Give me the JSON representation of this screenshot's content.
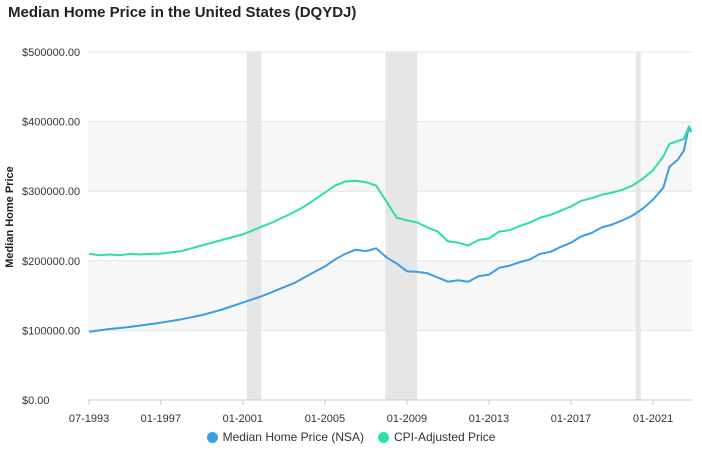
{
  "chart_data": {
    "type": "line",
    "title": "Median Home Price in the United States (DQYDJ)",
    "ylabel": "Median Home Price",
    "xlabel": "",
    "xlim": [
      1993.45,
      2022.9
    ],
    "ylim": [
      0,
      500000
    ],
    "x_ticks": [
      {
        "x": 1993.5,
        "label": "07-1993"
      },
      {
        "x": 1997.0,
        "label": "01-1997"
      },
      {
        "x": 2001.0,
        "label": "01-2001"
      },
      {
        "x": 2005.0,
        "label": "01-2005"
      },
      {
        "x": 2009.0,
        "label": "01-2009"
      },
      {
        "x": 2013.0,
        "label": "01-2013"
      },
      {
        "x": 2017.0,
        "label": "01-2017"
      },
      {
        "x": 2021.0,
        "label": "01-2021"
      }
    ],
    "y_ticks": [
      {
        "y": 0,
        "label": "$0.00"
      },
      {
        "y": 100000,
        "label": "$100000.00"
      },
      {
        "y": 200000,
        "label": "$200000.00"
      },
      {
        "y": 300000,
        "label": "$300000.00"
      },
      {
        "y": 400000,
        "label": "$400000.00"
      },
      {
        "y": 500000,
        "label": "$500000.00"
      }
    ],
    "recessions": [
      [
        2001.2,
        2001.9
      ],
      [
        2007.95,
        2009.5
      ],
      [
        2020.15,
        2020.4
      ]
    ],
    "legend_position": "bottom",
    "grid": "horizontal",
    "series": [
      {
        "name": "Median Home Price (NSA)",
        "color": "#3a9ee6",
        "points": [
          [
            1993.5,
            98000
          ],
          [
            1994.0,
            100000
          ],
          [
            1994.5,
            102000
          ],
          [
            1995.0,
            103500
          ],
          [
            1995.5,
            105000
          ],
          [
            1996.0,
            107000
          ],
          [
            1996.5,
            109000
          ],
          [
            1997.0,
            111000
          ],
          [
            1997.5,
            113500
          ],
          [
            1998.0,
            116000
          ],
          [
            1998.5,
            119000
          ],
          [
            1999.0,
            122000
          ],
          [
            1999.5,
            126000
          ],
          [
            2000.0,
            130000
          ],
          [
            2000.5,
            135000
          ],
          [
            2001.0,
            140000
          ],
          [
            2001.5,
            145000
          ],
          [
            2002.0,
            150000
          ],
          [
            2002.5,
            156000
          ],
          [
            2003.0,
            162000
          ],
          [
            2003.5,
            168000
          ],
          [
            2004.0,
            176000
          ],
          [
            2004.5,
            184000
          ],
          [
            2005.0,
            192000
          ],
          [
            2005.5,
            202000
          ],
          [
            2006.0,
            210000
          ],
          [
            2006.5,
            216000
          ],
          [
            2007.0,
            214000
          ],
          [
            2007.5,
            218000
          ],
          [
            2008.0,
            205000
          ],
          [
            2008.5,
            196000
          ],
          [
            2009.0,
            185000
          ],
          [
            2009.5,
            184000
          ],
          [
            2010.0,
            182000
          ],
          [
            2010.5,
            176000
          ],
          [
            2011.0,
            170000
          ],
          [
            2011.5,
            172000
          ],
          [
            2012.0,
            170000
          ],
          [
            2012.5,
            178000
          ],
          [
            2013.0,
            180000
          ],
          [
            2013.5,
            190000
          ],
          [
            2014.0,
            193000
          ],
          [
            2014.5,
            198000
          ],
          [
            2015.0,
            202000
          ],
          [
            2015.5,
            210000
          ],
          [
            2016.0,
            213000
          ],
          [
            2016.5,
            220000
          ],
          [
            2017.0,
            226000
          ],
          [
            2017.5,
            235000
          ],
          [
            2018.0,
            240000
          ],
          [
            2018.5,
            248000
          ],
          [
            2019.0,
            252000
          ],
          [
            2019.5,
            258000
          ],
          [
            2020.0,
            265000
          ],
          [
            2020.5,
            275000
          ],
          [
            2021.0,
            288000
          ],
          [
            2021.5,
            305000
          ],
          [
            2021.8,
            335000
          ],
          [
            2022.2,
            345000
          ],
          [
            2022.5,
            358000
          ],
          [
            2022.75,
            393000
          ],
          [
            2022.85,
            385000
          ]
        ]
      },
      {
        "name": "CPI-Adjusted Price",
        "color": "#2ee0a0",
        "points": [
          [
            1993.5,
            210000
          ],
          [
            1994.0,
            208000
          ],
          [
            1994.5,
            209000
          ],
          [
            1995.0,
            208000
          ],
          [
            1995.5,
            210000
          ],
          [
            1996.0,
            209000
          ],
          [
            1996.5,
            210000
          ],
          [
            1997.0,
            210000
          ],
          [
            1997.5,
            212000
          ],
          [
            1998.0,
            214000
          ],
          [
            1998.5,
            218000
          ],
          [
            1999.0,
            222000
          ],
          [
            1999.5,
            226000
          ],
          [
            2000.0,
            230000
          ],
          [
            2000.5,
            234000
          ],
          [
            2001.0,
            238000
          ],
          [
            2001.5,
            244000
          ],
          [
            2002.0,
            250000
          ],
          [
            2002.5,
            256000
          ],
          [
            2003.0,
            263000
          ],
          [
            2003.5,
            270000
          ],
          [
            2004.0,
            278000
          ],
          [
            2004.5,
            288000
          ],
          [
            2005.0,
            298000
          ],
          [
            2005.5,
            308000
          ],
          [
            2006.0,
            314000
          ],
          [
            2006.5,
            315000
          ],
          [
            2007.0,
            313000
          ],
          [
            2007.5,
            308000
          ],
          [
            2008.0,
            285000
          ],
          [
            2008.5,
            262000
          ],
          [
            2009.0,
            258000
          ],
          [
            2009.5,
            255000
          ],
          [
            2010.0,
            248000
          ],
          [
            2010.5,
            242000
          ],
          [
            2011.0,
            228000
          ],
          [
            2011.5,
            226000
          ],
          [
            2012.0,
            222000
          ],
          [
            2012.5,
            230000
          ],
          [
            2013.0,
            232000
          ],
          [
            2013.5,
            242000
          ],
          [
            2014.0,
            244000
          ],
          [
            2014.5,
            250000
          ],
          [
            2015.0,
            255000
          ],
          [
            2015.5,
            262000
          ],
          [
            2016.0,
            266000
          ],
          [
            2016.5,
            272000
          ],
          [
            2017.0,
            278000
          ],
          [
            2017.5,
            286000
          ],
          [
            2018.0,
            290000
          ],
          [
            2018.5,
            295000
          ],
          [
            2019.0,
            298000
          ],
          [
            2019.5,
            302000
          ],
          [
            2020.0,
            308000
          ],
          [
            2020.5,
            318000
          ],
          [
            2021.0,
            330000
          ],
          [
            2021.5,
            350000
          ],
          [
            2021.8,
            368000
          ],
          [
            2022.2,
            372000
          ],
          [
            2022.5,
            375000
          ],
          [
            2022.75,
            393000
          ],
          [
            2022.85,
            388000
          ]
        ]
      }
    ]
  }
}
